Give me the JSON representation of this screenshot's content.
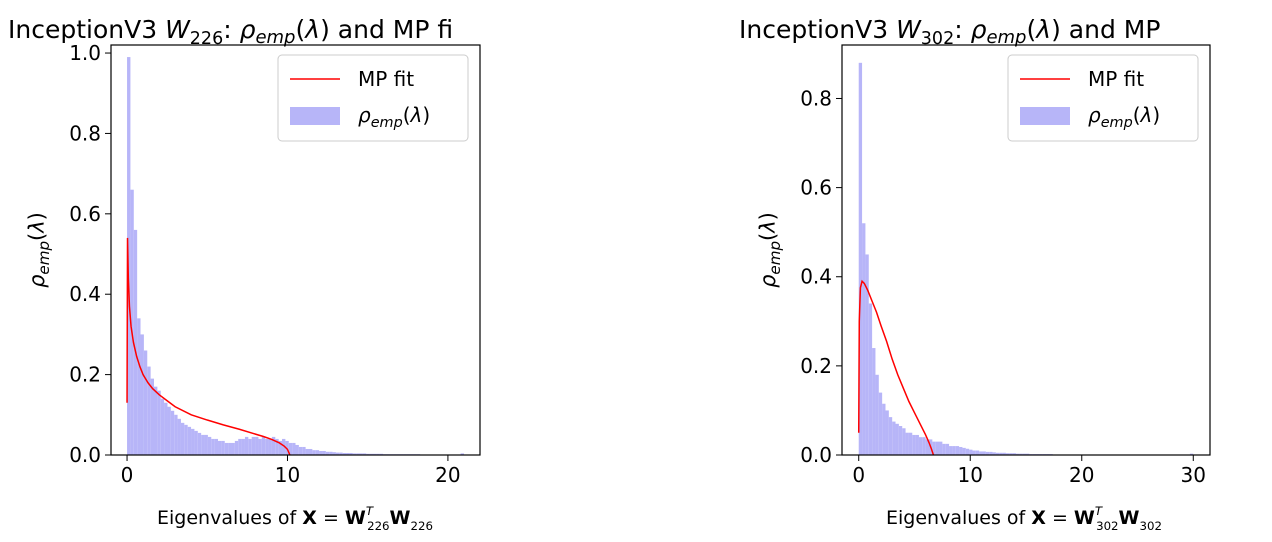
{
  "chart_data": [
    {
      "type": "bar",
      "title_prefix": "InceptionV3 ",
      "title_var": "W",
      "title_sub": "226",
      "title_suffix": "and MP fi",
      "ylabel": "ρemp(λ)",
      "xlabel_prefix": "Eigenvalues of ",
      "xlabel_bold": "X",
      "xlabel_sub": "226",
      "xlim": [
        -1.0,
        22.0
      ],
      "ylim": [
        0.0,
        1.02
      ],
      "xticks": [
        0,
        10,
        20
      ],
      "yticks": [
        "0.0",
        "0.2",
        "0.4",
        "0.6",
        "0.8",
        "1.0"
      ],
      "legend_position": "top-right",
      "legend": {
        "fit": "MP fit",
        "emp": "ρemp(λ)"
      },
      "series": [
        {
          "name": "ρemp(λ)",
          "kind": "histogram",
          "bin_width": 0.21,
          "bin_start": 0.0,
          "values": [
            0.99,
            0.66,
            0.56,
            0.34,
            0.3,
            0.26,
            0.22,
            0.19,
            0.17,
            0.16,
            0.14,
            0.13,
            0.12,
            0.11,
            0.1,
            0.09,
            0.08,
            0.075,
            0.07,
            0.065,
            0.06,
            0.055,
            0.05,
            0.05,
            0.045,
            0.04,
            0.04,
            0.035,
            0.035,
            0.03,
            0.03,
            0.03,
            0.035,
            0.04,
            0.04,
            0.045,
            0.04,
            0.045,
            0.045,
            0.04,
            0.045,
            0.04,
            0.04,
            0.045,
            0.04,
            0.035,
            0.04,
            0.035,
            0.03,
            0.03,
            0.025,
            0.02,
            0.02,
            0.015,
            0.015,
            0.012,
            0.012,
            0.01,
            0.01,
            0.008,
            0.008,
            0.007,
            0.006,
            0.006,
            0.005,
            0.005,
            0.005,
            0.004,
            0.004,
            0.004,
            0.004,
            0.003,
            0.003,
            0.003,
            0.003,
            0.003,
            0.002,
            0.002,
            0.002,
            0.002,
            0.002,
            0.002,
            0.002,
            0.002,
            0.002,
            0.002,
            0.002,
            0.001,
            0.001,
            0.001,
            0.001,
            0.001,
            0.001,
            0.001,
            0.001,
            0.001,
            0.001,
            0.001,
            0.001,
            0.004
          ]
        },
        {
          "name": "MP fit",
          "kind": "line",
          "x": [
            0.0,
            0.03,
            0.08,
            0.15,
            0.25,
            0.4,
            0.6,
            0.8,
            1.0,
            1.3,
            1.6,
            2.0,
            2.5,
            3.0,
            4.0,
            5.0,
            6.0,
            7.0,
            8.0,
            8.5,
            9.0,
            9.5,
            9.8,
            10.0,
            10.15
          ],
          "y": [
            0.13,
            0.54,
            0.44,
            0.37,
            0.32,
            0.28,
            0.245,
            0.22,
            0.2,
            0.18,
            0.165,
            0.15,
            0.135,
            0.12,
            0.1,
            0.087,
            0.075,
            0.064,
            0.052,
            0.046,
            0.039,
            0.03,
            0.022,
            0.014,
            0.0
          ]
        }
      ]
    },
    {
      "type": "bar",
      "title_prefix": "InceptionV3 ",
      "title_var": "W",
      "title_sub": "302",
      "title_suffix": "and MP",
      "ylabel": "ρemp(λ)",
      "xlabel_prefix": "Eigenvalues of ",
      "xlabel_bold": "X",
      "xlabel_sub": "302",
      "xlim": [
        -1.5,
        31.5
      ],
      "ylim": [
        0.0,
        0.92
      ],
      "xticks": [
        0,
        10,
        20,
        30
      ],
      "yticks": [
        "0.0",
        "0.2",
        "0.4",
        "0.6",
        "0.8"
      ],
      "legend_position": "top-right",
      "legend": {
        "fit": "MP fit",
        "emp": "ρemp(λ)"
      },
      "series": [
        {
          "name": "ρemp(λ)",
          "kind": "histogram",
          "bin_width": 0.3,
          "bin_start": 0.0,
          "values": [
            0.88,
            0.52,
            0.45,
            0.34,
            0.24,
            0.18,
            0.14,
            0.115,
            0.1,
            0.085,
            0.075,
            0.07,
            0.065,
            0.06,
            0.05,
            0.05,
            0.045,
            0.045,
            0.04,
            0.04,
            0.035,
            0.035,
            0.03,
            0.03,
            0.03,
            0.025,
            0.025,
            0.02,
            0.02,
            0.02,
            0.018,
            0.016,
            0.014,
            0.012,
            0.01,
            0.01,
            0.008,
            0.008,
            0.007,
            0.007,
            0.006,
            0.005,
            0.005,
            0.005,
            0.004,
            0.004,
            0.004,
            0.003,
            0.003,
            0.003,
            0.003,
            0.002,
            0.002,
            0.002,
            0.002,
            0.002,
            0.002,
            0.002,
            0.001,
            0.001,
            0.001,
            0.001,
            0.001,
            0.001,
            0.001,
            0.001,
            0.001,
            0.001,
            0.001,
            0.001,
            0.001,
            0.001,
            0.001,
            0.001,
            0.001,
            0.001,
            0.001,
            0.001,
            0.001,
            0.001,
            0.001,
            0.001,
            0.001,
            0.001,
            0.001,
            0.001,
            0.001,
            0.001,
            0.001,
            0.001,
            0.001,
            0.001,
            0.001,
            0.001,
            0.001,
            0.001,
            0.001,
            0.001,
            0.001,
            0.003
          ]
        },
        {
          "name": "MP fit",
          "kind": "line",
          "x": [
            0.0,
            0.05,
            0.15,
            0.3,
            0.5,
            0.8,
            1.2,
            1.6,
            2.0,
            2.5,
            3.0,
            3.5,
            4.0,
            4.5,
            5.0,
            5.5,
            6.0,
            6.3,
            6.5,
            6.7
          ],
          "y": [
            0.05,
            0.3,
            0.375,
            0.39,
            0.385,
            0.37,
            0.345,
            0.32,
            0.29,
            0.255,
            0.215,
            0.18,
            0.15,
            0.12,
            0.095,
            0.07,
            0.045,
            0.028,
            0.015,
            0.0
          ]
        }
      ]
    }
  ]
}
